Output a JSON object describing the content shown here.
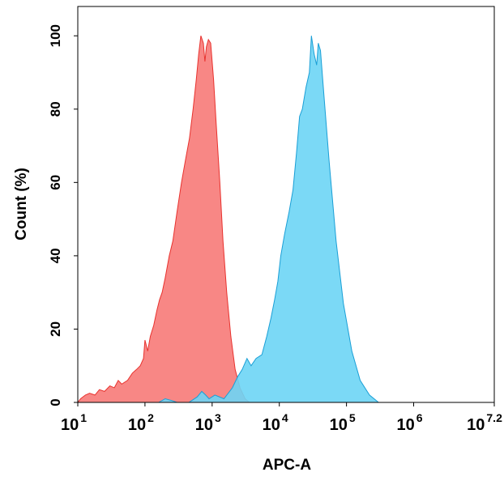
{
  "chart_data": {
    "type": "area",
    "title": "",
    "xlabel": "APC-A",
    "ylabel": "Count  (%)",
    "x_scale": "log10",
    "xlim": [
      10,
      15848931.9
    ],
    "ylim": [
      0,
      108
    ],
    "x_tick_labels": [
      {
        "base": "10",
        "exp": "1",
        "value": 10
      },
      {
        "base": "10",
        "exp": "2",
        "value": 100
      },
      {
        "base": "10",
        "exp": "3",
        "value": 1000
      },
      {
        "base": "10",
        "exp": "4",
        "value": 10000
      },
      {
        "base": "10",
        "exp": "5",
        "value": 100000
      },
      {
        "base": "10",
        "exp": "6",
        "value": 1000000
      },
      {
        "base": "10",
        "exp": "7.2",
        "value": 15848931.9
      }
    ],
    "y_ticks": [
      0,
      20,
      40,
      60,
      80,
      100
    ],
    "grid": false,
    "series": [
      {
        "color": "#f77a78",
        "line_color": "#e8322e",
        "points": [
          [
            10,
            0
          ],
          [
            11,
            1
          ],
          [
            13,
            2
          ],
          [
            15,
            2.5
          ],
          [
            18,
            2
          ],
          [
            21,
            3.5
          ],
          [
            25,
            3
          ],
          [
            30,
            4.5
          ],
          [
            35,
            4
          ],
          [
            40,
            6
          ],
          [
            45,
            5
          ],
          [
            55,
            6
          ],
          [
            65,
            8
          ],
          [
            75,
            9
          ],
          [
            85,
            10
          ],
          [
            95,
            12
          ],
          [
            100,
            17
          ],
          [
            110,
            14
          ],
          [
            120,
            18
          ],
          [
            135,
            21
          ],
          [
            150,
            25
          ],
          [
            165,
            28
          ],
          [
            180,
            30
          ],
          [
            200,
            34
          ],
          [
            230,
            40
          ],
          [
            260,
            44
          ],
          [
            300,
            52
          ],
          [
            350,
            60
          ],
          [
            400,
            66
          ],
          [
            460,
            72
          ],
          [
            520,
            80
          ],
          [
            580,
            88
          ],
          [
            630,
            95
          ],
          [
            680,
            100
          ],
          [
            740,
            98
          ],
          [
            780,
            93
          ],
          [
            820,
            97
          ],
          [
            880,
            99
          ],
          [
            950,
            98
          ],
          [
            1050,
            88
          ],
          [
            1150,
            76
          ],
          [
            1300,
            60
          ],
          [
            1450,
            44
          ],
          [
            1650,
            30
          ],
          [
            1900,
            18
          ],
          [
            2200,
            9
          ],
          [
            2600,
            4
          ],
          [
            3100,
            1
          ],
          [
            3600,
            0
          ]
        ]
      },
      {
        "color": "#6dd5f5",
        "line_color": "#1a9fd6",
        "points": [
          [
            160,
            0
          ],
          [
            200,
            1
          ],
          [
            250,
            0.5
          ],
          [
            300,
            0
          ],
          [
            450,
            0
          ],
          [
            600,
            1.5
          ],
          [
            700,
            3
          ],
          [
            800,
            2
          ],
          [
            900,
            1
          ],
          [
            1100,
            2
          ],
          [
            1500,
            1
          ],
          [
            2000,
            4
          ],
          [
            2400,
            7
          ],
          [
            2800,
            9
          ],
          [
            3300,
            12
          ],
          [
            3800,
            10
          ],
          [
            4500,
            12
          ],
          [
            5500,
            13
          ],
          [
            6500,
            18
          ],
          [
            7500,
            23
          ],
          [
            8500,
            28
          ],
          [
            9500,
            33
          ],
          [
            10500,
            40
          ],
          [
            12000,
            46
          ],
          [
            14000,
            52
          ],
          [
            16000,
            58
          ],
          [
            18000,
            68
          ],
          [
            20000,
            78
          ],
          [
            22000,
            80
          ],
          [
            25000,
            86
          ],
          [
            28000,
            90
          ],
          [
            30000,
            100
          ],
          [
            33000,
            95
          ],
          [
            36000,
            92
          ],
          [
            38000,
            98
          ],
          [
            41000,
            96
          ],
          [
            46000,
            84
          ],
          [
            55000,
            66
          ],
          [
            70000,
            44
          ],
          [
            90000,
            27
          ],
          [
            120000,
            14
          ],
          [
            160000,
            6
          ],
          [
            220000,
            2
          ],
          [
            300000,
            0
          ]
        ]
      }
    ]
  }
}
